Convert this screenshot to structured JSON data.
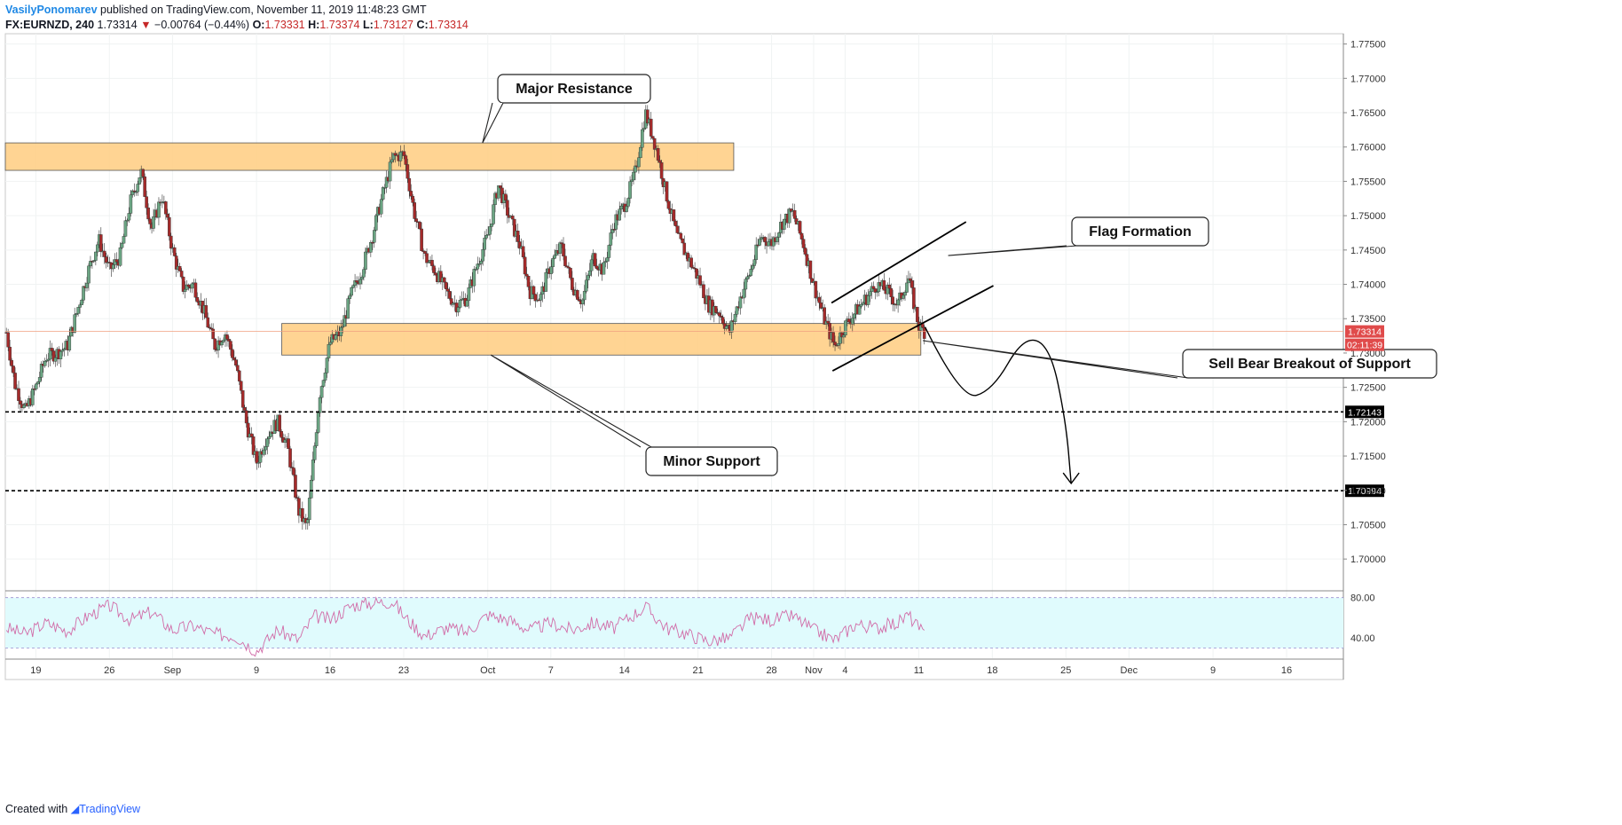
{
  "header": {
    "author": "VasilyPonomarev",
    "published": "published on TradingView.com, November 11, 2019 11:48:23 GMT",
    "symbol": "FX:EURNZD, 240",
    "last": "1.73314",
    "change": "−0.00764 (−0.44%)",
    "open_label": "O:",
    "open": "1.73331",
    "high_label": "H:",
    "high": "1.73374",
    "low_label": "L:",
    "low": "1.73127",
    "close_label": "C:",
    "close": "1.73314"
  },
  "footer": {
    "created": "Created with",
    "brand": "TradingView"
  },
  "colors": {
    "up": "#6ba583",
    "down": "#a52a2a",
    "zone": "#ffcc80",
    "zone_border": "#555555",
    "rsi_fill": "#e0fbfd",
    "rsi_line": "#d16ba7",
    "price_badge": "#e04b4b",
    "level_badge": "#000000",
    "grid": "#f0f3f3",
    "tv_blue": "#2962ff"
  },
  "chart_data": {
    "type": "candlestick",
    "symbol": "FX:EURNZD",
    "timeframe": "240",
    "y_ticks": [
      1.775,
      1.77,
      1.765,
      1.76,
      1.755,
      1.75,
      1.745,
      1.74,
      1.735,
      1.73,
      1.725,
      1.72,
      1.715,
      1.71,
      1.705,
      1.7
    ],
    "y_tick_labels": [
      "1.77500",
      "1.77000",
      "1.76500",
      "1.76000",
      "1.75500",
      "1.75000",
      "1.74500",
      "1.74000",
      "1.73500",
      "1.73000",
      "1.72500",
      "1.72000",
      "1.71500",
      "1.71000",
      "1.70500",
      "1.70000"
    ],
    "ylim": [
      1.6955,
      1.7765
    ],
    "x_ticks": [
      {
        "label": "19",
        "day": 19
      },
      {
        "label": "26",
        "day": 26
      },
      {
        "label": "Sep",
        "day": 32
      },
      {
        "label": "9",
        "day": 40
      },
      {
        "label": "16",
        "day": 47
      },
      {
        "label": "23",
        "day": 54
      },
      {
        "label": "Oct",
        "day": 62
      },
      {
        "label": "7",
        "day": 68
      },
      {
        "label": "14",
        "day": 75
      },
      {
        "label": "21",
        "day": 82
      },
      {
        "label": "28",
        "day": 89
      },
      {
        "label": "Nov",
        "day": 93
      },
      {
        "label": "4",
        "day": 96
      },
      {
        "label": "11",
        "day": 103
      },
      {
        "label": "18",
        "day": 110
      },
      {
        "label": "25",
        "day": 117
      },
      {
        "label": "Dec",
        "day": 123
      },
      {
        "label": "9",
        "day": 131
      },
      {
        "label": "16",
        "day": 138
      }
    ],
    "xlim": [
      16.1,
      143.4
    ],
    "price_path": [
      [
        16.2,
        1.733
      ],
      [
        17,
        1.7255
      ],
      [
        18,
        1.7215
      ],
      [
        19,
        1.725
      ],
      [
        20,
        1.7295
      ],
      [
        21,
        1.73
      ],
      [
        22,
        1.731
      ],
      [
        23,
        1.7365
      ],
      [
        24,
        1.742
      ],
      [
        25,
        1.7465
      ],
      [
        26,
        1.742
      ],
      [
        27,
        1.744
      ],
      [
        28,
        1.752
      ],
      [
        29,
        1.7565
      ],
      [
        30,
        1.748
      ],
      [
        31,
        1.753
      ],
      [
        32,
        1.745
      ],
      [
        33,
        1.7395
      ],
      [
        34,
        1.74
      ],
      [
        35,
        1.736
      ],
      [
        36,
        1.731
      ],
      [
        37,
        1.733
      ],
      [
        38,
        1.7285
      ],
      [
        39,
        1.72
      ],
      [
        40,
        1.714
      ],
      [
        41,
        1.718
      ],
      [
        42,
        1.72
      ],
      [
        43,
        1.716
      ],
      [
        44,
        1.707
      ],
      [
        44.8,
        1.7045
      ],
      [
        45.5,
        1.716
      ],
      [
        46,
        1.724
      ],
      [
        47,
        1.7315
      ],
      [
        48,
        1.733
      ],
      [
        49,
        1.7385
      ],
      [
        50,
        1.742
      ],
      [
        51,
        1.747
      ],
      [
        52,
        1.753
      ],
      [
        53,
        1.7585
      ],
      [
        54,
        1.759
      ],
      [
        55,
        1.7505
      ],
      [
        56,
        1.744
      ],
      [
        57,
        1.742
      ],
      [
        58,
        1.739
      ],
      [
        59,
        1.737
      ],
      [
        60,
        1.738
      ],
      [
        61,
        1.743
      ],
      [
        62,
        1.747
      ],
      [
        63,
        1.7545
      ],
      [
        64,
        1.75
      ],
      [
        65,
        1.746
      ],
      [
        66,
        1.739
      ],
      [
        67,
        1.738
      ],
      [
        68,
        1.743
      ],
      [
        69,
        1.7455
      ],
      [
        70,
        1.74
      ],
      [
        71,
        1.7375
      ],
      [
        72,
        1.744
      ],
      [
        73,
        1.742
      ],
      [
        74,
        1.749
      ],
      [
        75,
        1.7515
      ],
      [
        76,
        1.756
      ],
      [
        77,
        1.765
      ],
      [
        78,
        1.76
      ],
      [
        79,
        1.753
      ],
      [
        80,
        1.747
      ],
      [
        81,
        1.744
      ],
      [
        82,
        1.741
      ],
      [
        83,
        1.737
      ],
      [
        84,
        1.736
      ],
      [
        85,
        1.733
      ],
      [
        86,
        1.738
      ],
      [
        87,
        1.742
      ],
      [
        88,
        1.747
      ],
      [
        89,
        1.746
      ],
      [
        90,
        1.749
      ],
      [
        91,
        1.7505
      ],
      [
        92,
        1.746
      ],
      [
        93,
        1.74
      ],
      [
        94,
        1.735
      ],
      [
        95,
        1.731
      ],
      [
        96,
        1.734
      ],
      [
        97,
        1.736
      ],
      [
        98,
        1.738
      ],
      [
        99,
        1.74
      ],
      [
        100,
        1.739
      ],
      [
        101,
        1.737
      ],
      [
        102,
        1.741
      ],
      [
        103,
        1.734
      ],
      [
        103.6,
        1.7331
      ]
    ],
    "rsi": {
      "ylim": [
        20,
        85
      ],
      "ticks": [
        80,
        40
      ],
      "tick_labels": [
        "80.00",
        "40.00"
      ],
      "band": [
        30,
        80
      ],
      "path": [
        [
          16.2,
          50
        ],
        [
          18,
          44
        ],
        [
          20,
          55
        ],
        [
          22,
          47
        ],
        [
          24,
          62
        ],
        [
          26,
          72
        ],
        [
          28,
          58
        ],
        [
          30,
          66
        ],
        [
          32,
          48
        ],
        [
          34,
          52
        ],
        [
          36,
          44
        ],
        [
          38,
          42
        ],
        [
          40,
          27
        ],
        [
          42,
          48
        ],
        [
          44,
          38
        ],
        [
          45.5,
          62
        ],
        [
          47,
          58
        ],
        [
          49,
          72
        ],
        [
          51,
          75
        ],
        [
          53,
          76
        ],
        [
          54,
          62
        ],
        [
          56,
          42
        ],
        [
          58,
          50
        ],
        [
          60,
          46
        ],
        [
          62,
          63
        ],
        [
          64,
          58
        ],
        [
          66,
          48
        ],
        [
          68,
          55
        ],
        [
          70,
          48
        ],
        [
          72,
          55
        ],
        [
          74,
          50
        ],
        [
          76,
          64
        ],
        [
          77,
          71
        ],
        [
          79,
          50
        ],
        [
          81,
          44
        ],
        [
          83,
          37
        ],
        [
          85,
          40
        ],
        [
          87,
          60
        ],
        [
          89,
          58
        ],
        [
          91,
          62
        ],
        [
          93,
          48
        ],
        [
          95,
          38
        ],
        [
          97,
          54
        ],
        [
          99,
          50
        ],
        [
          101,
          55
        ],
        [
          102,
          63
        ],
        [
          103.6,
          42
        ]
      ]
    },
    "zones": [
      {
        "name": "major-resistance",
        "x": [
          16.1,
          85.4
        ],
        "y": [
          1.7566,
          1.7606
        ]
      },
      {
        "name": "minor-support",
        "x": [
          42.4,
          103.2
        ],
        "y": [
          1.7297,
          1.7343
        ]
      }
    ],
    "horizontal_levels": [
      1.72143,
      1.70994
    ],
    "level_labels": [
      "1.72143",
      "1.70994"
    ],
    "current_price": 1.73314,
    "current_price_label": "1.73314",
    "countdown_label": "02:11:39",
    "flag_lines": [
      {
        "x": [
          94.7,
          107.5
        ],
        "y": [
          1.7373,
          1.7491
        ]
      },
      {
        "x": [
          94.8,
          110.1
        ],
        "y": [
          1.7274,
          1.7398
        ]
      }
    ],
    "projection_path": [
      [
        103.6,
        1.7338
      ],
      [
        107,
        1.7232
      ],
      [
        110,
        1.7245
      ],
      [
        113,
        1.7325
      ],
      [
        115.5,
        1.731
      ],
      [
        117,
        1.72
      ],
      [
        117.5,
        1.711
      ]
    ],
    "callouts": [
      {
        "id": "major-resistance-label",
        "text": "Major Resistance"
      },
      {
        "id": "minor-support-label",
        "text": "Minor Support"
      },
      {
        "id": "flag-formation-label",
        "text": "Flag Formation"
      },
      {
        "id": "sell-breakout-label",
        "text": "Sell Bear Breakout of Support"
      }
    ],
    "grid": true
  }
}
